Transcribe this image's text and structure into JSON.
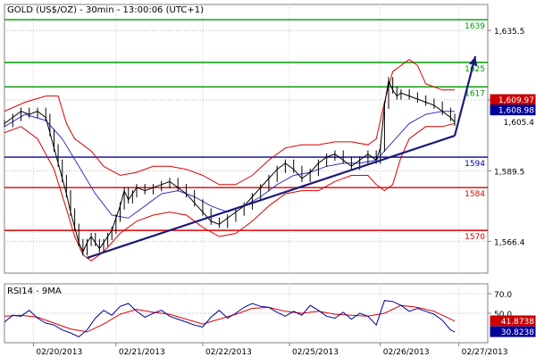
{
  "chart_data": {
    "type": "line",
    "title": "GOLD (US$/OZ) - 30min - 13:00:06 (UTC+1)",
    "price_panel": {
      "ylim": [
        1556,
        1644
      ],
      "y_ticks": [
        1635.5,
        1612.7,
        1589.5,
        1566.4
      ],
      "y_tick_labels": [
        "1,635.5",
        "",
        "1,589.5",
        "1,566.4"
      ],
      "x_dates": [
        "02/20/2013",
        "02/21/2013",
        "02/22/2013",
        "02/25/2013",
        "02/26/2013",
        "02/27/2013"
      ],
      "levels": [
        {
          "label": "1639",
          "value": 1639,
          "color": "#009900"
        },
        {
          "label": "1625",
          "value": 1625,
          "color": "#009900"
        },
        {
          "label": "1617",
          "value": 1617,
          "color": "#009900"
        },
        {
          "label": "1594",
          "value": 1594,
          "color": "#000099"
        },
        {
          "label": "1584",
          "value": 1584,
          "color": "#dd0000"
        },
        {
          "label": "1570",
          "value": 1570,
          "color": "#dd0000"
        }
      ],
      "price_tags": [
        {
          "label": "1,609.97",
          "value": 1612.7,
          "bg": "#cc0000",
          "fg": "#ffffff"
        },
        {
          "label": "1,608.98",
          "value": 1609.3,
          "bg": "#000099",
          "fg": "#ffffff"
        },
        {
          "label": "1,605.4",
          "value": 1605.4,
          "bg": "#ffffff",
          "fg": "#000000"
        }
      ],
      "price_series": [
        [
          0,
          1605.0
        ],
        [
          2,
          1607.0
        ],
        [
          4,
          1609.0
        ],
        [
          6,
          1608.0
        ],
        [
          8,
          1609.0
        ],
        [
          10,
          1607.0
        ],
        [
          11,
          1602.0
        ],
        [
          12,
          1597.0
        ],
        [
          13,
          1592.0
        ],
        [
          14,
          1587.0
        ],
        [
          15,
          1582.0
        ],
        [
          16,
          1576.0
        ],
        [
          17,
          1571.0
        ],
        [
          18,
          1566.0
        ],
        [
          19,
          1563.0
        ],
        [
          20,
          1566.0
        ],
        [
          21,
          1568.0
        ],
        [
          22,
          1566.0
        ],
        [
          23,
          1564.0
        ],
        [
          24,
          1566.0
        ],
        [
          25,
          1568.0
        ],
        [
          26,
          1570.0
        ],
        [
          27,
          1574.0
        ],
        [
          28,
          1578.0
        ],
        [
          29,
          1583.0
        ],
        [
          30,
          1580.0
        ],
        [
          31,
          1582.0
        ],
        [
          32,
          1584.0
        ],
        [
          34,
          1583.0
        ],
        [
          36,
          1584.0
        ],
        [
          38,
          1585.0
        ],
        [
          40,
          1586.0
        ],
        [
          42,
          1584.0
        ],
        [
          44,
          1582.0
        ],
        [
          46,
          1579.0
        ],
        [
          48,
          1576.0
        ],
        [
          50,
          1573.0
        ],
        [
          52,
          1572.0
        ],
        [
          54,
          1574.0
        ],
        [
          56,
          1576.0
        ],
        [
          58,
          1578.0
        ],
        [
          60,
          1581.0
        ],
        [
          62,
          1584.0
        ],
        [
          64,
          1587.0
        ],
        [
          66,
          1590.0
        ],
        [
          68,
          1592.0
        ],
        [
          70,
          1590.0
        ],
        [
          72,
          1587.0
        ],
        [
          74,
          1589.0
        ],
        [
          76,
          1592.0
        ],
        [
          78,
          1594.0
        ],
        [
          80,
          1595.0
        ],
        [
          82,
          1593.0
        ],
        [
          84,
          1591.0
        ],
        [
          86,
          1593.0
        ],
        [
          88,
          1595.0
        ],
        [
          90,
          1593.0
        ],
        [
          91,
          1597.0
        ],
        [
          92,
          1611.0
        ],
        [
          93,
          1619.0
        ],
        [
          94,
          1616.0
        ],
        [
          95,
          1614.0
        ],
        [
          96,
          1615.0
        ],
        [
          98,
          1614.0
        ],
        [
          100,
          1613.0
        ],
        [
          102,
          1612.0
        ],
        [
          104,
          1611.0
        ],
        [
          106,
          1609.0
        ],
        [
          108,
          1607.0
        ],
        [
          109,
          1605.4
        ]
      ],
      "ma_series": [
        [
          0,
          1604.0
        ],
        [
          5,
          1608.0
        ],
        [
          10,
          1606.0
        ],
        [
          14,
          1600.0
        ],
        [
          18,
          1591.0
        ],
        [
          22,
          1582.0
        ],
        [
          26,
          1575.0
        ],
        [
          30,
          1574.0
        ],
        [
          34,
          1578.0
        ],
        [
          38,
          1582.0
        ],
        [
          42,
          1583.0
        ],
        [
          46,
          1581.0
        ],
        [
          50,
          1578.0
        ],
        [
          54,
          1576.0
        ],
        [
          58,
          1578.0
        ],
        [
          62,
          1581.0
        ],
        [
          66,
          1585.0
        ],
        [
          70,
          1588.0
        ],
        [
          74,
          1589.0
        ],
        [
          78,
          1591.0
        ],
        [
          82,
          1592.0
        ],
        [
          86,
          1592.0
        ],
        [
          90,
          1593.0
        ],
        [
          94,
          1599.0
        ],
        [
          98,
          1605.0
        ],
        [
          102,
          1608.0
        ],
        [
          106,
          1609.0
        ],
        [
          109,
          1609.0
        ]
      ],
      "bb_upper": [
        [
          0,
          1609.0
        ],
        [
          5,
          1612.0
        ],
        [
          10,
          1614.0
        ],
        [
          13,
          1614.0
        ],
        [
          15,
          1605.0
        ],
        [
          17,
          1600.0
        ],
        [
          19,
          1598.0
        ],
        [
          21,
          1596.0
        ],
        [
          24,
          1591.0
        ],
        [
          28,
          1588.0
        ],
        [
          32,
          1589.0
        ],
        [
          36,
          1591.0
        ],
        [
          40,
          1591.0
        ],
        [
          44,
          1590.0
        ],
        [
          48,
          1588.0
        ],
        [
          52,
          1585.0
        ],
        [
          56,
          1585.0
        ],
        [
          60,
          1588.0
        ],
        [
          64,
          1593.0
        ],
        [
          68,
          1597.0
        ],
        [
          72,
          1598.0
        ],
        [
          76,
          1598.0
        ],
        [
          80,
          1599.0
        ],
        [
          84,
          1599.0
        ],
        [
          88,
          1598.0
        ],
        [
          90,
          1600.0
        ],
        [
          92,
          1612.0
        ],
        [
          94,
          1622.0
        ],
        [
          96,
          1624.0
        ],
        [
          98,
          1626.0
        ],
        [
          100,
          1624.0
        ],
        [
          102,
          1618.0
        ],
        [
          106,
          1616.0
        ],
        [
          109,
          1616.0
        ]
      ],
      "bb_lower": [
        [
          0,
          1602.0
        ],
        [
          4,
          1604.0
        ],
        [
          8,
          1600.0
        ],
        [
          12,
          1590.0
        ],
        [
          15,
          1577.0
        ],
        [
          17,
          1568.0
        ],
        [
          19,
          1562.0
        ],
        [
          21,
          1560.0
        ],
        [
          24,
          1563.0
        ],
        [
          28,
          1569.0
        ],
        [
          32,
          1573.0
        ],
        [
          36,
          1575.0
        ],
        [
          40,
          1576.0
        ],
        [
          44,
          1575.0
        ],
        [
          48,
          1571.0
        ],
        [
          52,
          1568.0
        ],
        [
          56,
          1569.0
        ],
        [
          60,
          1573.0
        ],
        [
          64,
          1578.0
        ],
        [
          68,
          1582.0
        ],
        [
          72,
          1583.0
        ],
        [
          76,
          1583.0
        ],
        [
          80,
          1586.0
        ],
        [
          84,
          1588.0
        ],
        [
          88,
          1588.0
        ],
        [
          90,
          1585.0
        ],
        [
          92,
          1583.0
        ],
        [
          94,
          1585.0
        ],
        [
          96,
          1594.0
        ],
        [
          98,
          1600.0
        ],
        [
          102,
          1604.0
        ],
        [
          106,
          1604.0
        ],
        [
          109,
          1605.0
        ]
      ],
      "trendline": [
        [
          20,
          1561.0
        ],
        [
          109,
          1601.0
        ]
      ],
      "forecast_arrow": [
        [
          109,
          1601.0
        ],
        [
          114,
          1627.0
        ]
      ]
    },
    "rsi_panel": {
      "title": "RSI14 - 9MA",
      "ylim": [
        20,
        80
      ],
      "y_ticks": [
        70.0,
        50.0
      ],
      "y_tick_labels": [
        "70.0",
        "50.0"
      ],
      "value_tags": [
        {
          "label": "41.8738",
          "value": 41.8738,
          "bg": "#cc0000",
          "fg": "#ffffff"
        },
        {
          "label": "30.8238",
          "value": 30.8238,
          "bg": "#000099",
          "fg": "#ffffff"
        }
      ],
      "rsi_series": [
        [
          0,
          41
        ],
        [
          2,
          48
        ],
        [
          4,
          47
        ],
        [
          6,
          53
        ],
        [
          8,
          45
        ],
        [
          10,
          40
        ],
        [
          12,
          38
        ],
        [
          14,
          33
        ],
        [
          16,
          30
        ],
        [
          18,
          26
        ],
        [
          20,
          33
        ],
        [
          22,
          45
        ],
        [
          24,
          53
        ],
        [
          26,
          48
        ],
        [
          28,
          57
        ],
        [
          30,
          60
        ],
        [
          32,
          52
        ],
        [
          34,
          46
        ],
        [
          36,
          50
        ],
        [
          38,
          53
        ],
        [
          40,
          47
        ],
        [
          42,
          44
        ],
        [
          44,
          41
        ],
        [
          46,
          38
        ],
        [
          48,
          36
        ],
        [
          50,
          46
        ],
        [
          52,
          53
        ],
        [
          54,
          45
        ],
        [
          56,
          50
        ],
        [
          58,
          56
        ],
        [
          60,
          60
        ],
        [
          62,
          57
        ],
        [
          64,
          56
        ],
        [
          66,
          51
        ],
        [
          68,
          47
        ],
        [
          70,
          52
        ],
        [
          72,
          48
        ],
        [
          74,
          58
        ],
        [
          76,
          53
        ],
        [
          78,
          47
        ],
        [
          80,
          45
        ],
        [
          82,
          51
        ],
        [
          84,
          44
        ],
        [
          86,
          50
        ],
        [
          88,
          47
        ],
        [
          90,
          38
        ],
        [
          92,
          63
        ],
        [
          94,
          62
        ],
        [
          96,
          58
        ],
        [
          98,
          52
        ],
        [
          100,
          55
        ],
        [
          102,
          52
        ],
        [
          104,
          49
        ],
        [
          106,
          43
        ],
        [
          108,
          33
        ],
        [
          109,
          31
        ]
      ],
      "rsi_ma_series": [
        [
          0,
          47
        ],
        [
          4,
          48
        ],
        [
          8,
          46
        ],
        [
          12,
          40
        ],
        [
          16,
          34
        ],
        [
          20,
          31
        ],
        [
          24,
          39
        ],
        [
          28,
          49
        ],
        [
          32,
          54
        ],
        [
          36,
          51
        ],
        [
          40,
          49
        ],
        [
          44,
          44
        ],
        [
          48,
          39
        ],
        [
          52,
          44
        ],
        [
          56,
          49
        ],
        [
          60,
          55
        ],
        [
          64,
          56
        ],
        [
          68,
          52
        ],
        [
          72,
          50
        ],
        [
          76,
          52
        ],
        [
          80,
          49
        ],
        [
          84,
          48
        ],
        [
          88,
          47
        ],
        [
          92,
          50
        ],
        [
          96,
          58
        ],
        [
          100,
          56
        ],
        [
          104,
          52
        ],
        [
          108,
          44
        ],
        [
          109,
          42
        ]
      ]
    },
    "x_index_range": [
      0,
      117
    ],
    "x_date_positions": [
      7,
      27,
      48,
      69,
      91,
      110
    ]
  }
}
